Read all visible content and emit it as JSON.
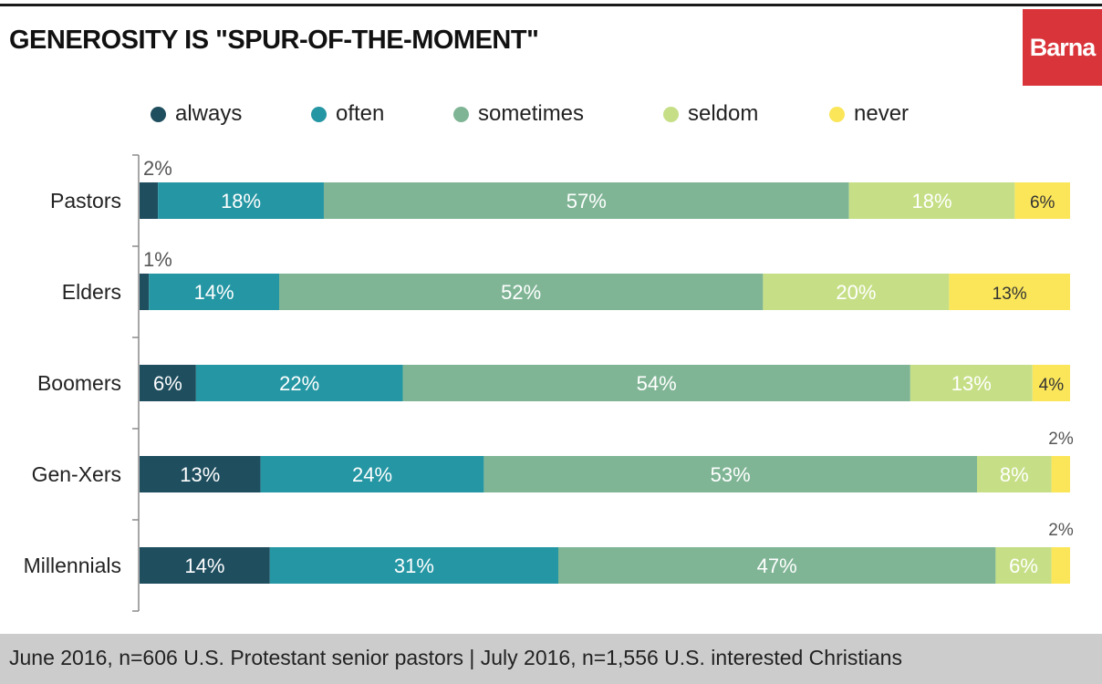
{
  "header": {
    "title": "GENEROSITY IS \"SPUR-OF-THE-MOMENT\"",
    "brand": "Barna"
  },
  "footer": {
    "note": "June 2016, n=606 U.S. Protestant senior pastors | July 2016, n=1,556 U.S. interested Christians"
  },
  "colors": {
    "always": "#1f4e5f",
    "often": "#2596a3",
    "sometimes": "#7fb595",
    "seldom": "#c6df86",
    "never": "#fbe65a"
  },
  "chart_data": {
    "type": "bar",
    "orientation": "horizontal",
    "stacked": true,
    "title": "GENEROSITY IS \"SPUR-OF-THE-MOMENT\"",
    "legend_position": "top",
    "categories": [
      "Pastors",
      "Elders",
      "Boomers",
      "Gen-Xers",
      "Millennials"
    ],
    "series": [
      {
        "name": "always",
        "color": "#1f4e5f",
        "values": [
          2,
          1,
          6,
          13,
          14
        ],
        "labels": [
          "2%",
          "1%",
          "6%",
          "13%",
          "14%"
        ]
      },
      {
        "name": "often",
        "color": "#2596a3",
        "values": [
          18,
          14,
          22,
          24,
          31
        ],
        "labels": [
          "18%",
          "14%",
          "22%",
          "24%",
          "31%"
        ]
      },
      {
        "name": "sometimes",
        "color": "#7fb595",
        "values": [
          57,
          52,
          54,
          53,
          47
        ],
        "labels": [
          "57%",
          "52%",
          "54%",
          "53%",
          "47%"
        ]
      },
      {
        "name": "seldom",
        "color": "#c6df86",
        "values": [
          18,
          20,
          13,
          8,
          6
        ],
        "labels": [
          "18%",
          "20%",
          "13%",
          "8%",
          "6%"
        ]
      },
      {
        "name": "never",
        "color": "#fbe65a",
        "values": [
          6,
          13,
          4,
          2,
          2
        ],
        "labels": [
          "6%",
          "13%",
          "4%",
          "2%",
          "2%"
        ]
      }
    ]
  }
}
